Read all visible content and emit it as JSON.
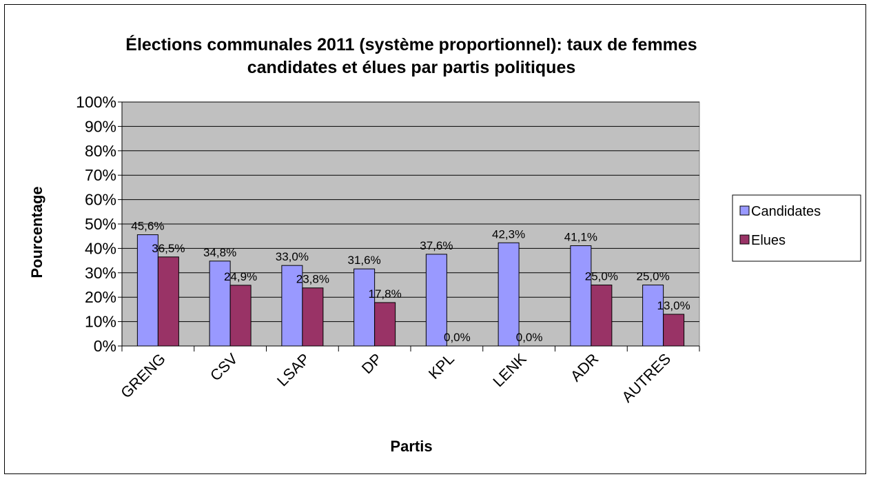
{
  "chart_data": {
    "type": "bar",
    "title_lines": [
      "Élections communales 2011 (système proportionnel): taux de femmes",
      "candidates et élues par partis politiques"
    ],
    "xlabel": "Partis",
    "ylabel": "Pourcentage",
    "categories": [
      "GRENG",
      "CSV",
      "LSAP",
      "DP",
      "KPL",
      "LENK",
      "ADR",
      "AUTRES"
    ],
    "series": [
      {
        "name": "Candidates",
        "color": "#9999FF",
        "values": [
          45.6,
          34.8,
          33.0,
          31.6,
          37.6,
          42.3,
          41.1,
          25.0
        ],
        "labels": [
          "45,6%",
          "34,8%",
          "33,0%",
          "31,6%",
          "37,6%",
          "42,3%",
          "41,1%",
          "25,0%"
        ]
      },
      {
        "name": "Elues",
        "color": "#993366",
        "values": [
          36.5,
          24.9,
          23.8,
          17.8,
          0.0,
          0.0,
          25.0,
          13.0
        ],
        "labels": [
          "36,5%",
          "24,9%",
          "23,8%",
          "17,8%",
          "0,0%",
          "0,0%",
          "25,0%",
          "13,0%"
        ]
      }
    ],
    "ylim": [
      0,
      100
    ],
    "yticks": [
      "0%",
      "10%",
      "20%",
      "30%",
      "40%",
      "50%",
      "60%",
      "70%",
      "80%",
      "90%",
      "100%"
    ],
    "plot_background": "#C0C0C0",
    "grid": true,
    "legend_position": "right"
  }
}
